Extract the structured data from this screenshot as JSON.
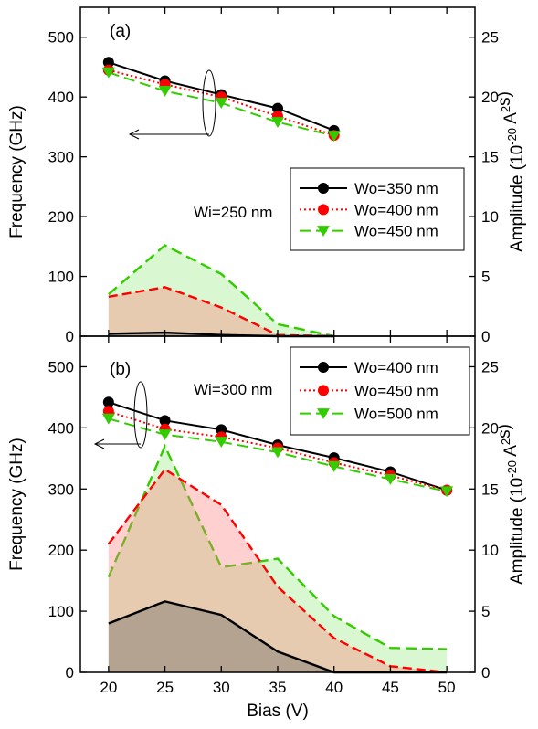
{
  "chart_data": [
    {
      "panel_label": "(a)",
      "type": "line",
      "annotation": "Wi=250 nm",
      "xlabel": "Bias (V)",
      "ylabel_left": "Frequency (GHz)",
      "ylabel_right": {
        "prefix": "Amplitude (10",
        "exp": "-20",
        "mid": " A",
        "exp2": "2",
        "suffix": "s)"
      },
      "xlim": [
        17.5,
        52.5
      ],
      "ylim_left": [
        0,
        550
      ],
      "ylim_right": [
        0,
        27.5
      ],
      "x_ticks": [
        20,
        25,
        30,
        35,
        40,
        45,
        50
      ],
      "y_ticks_left": [
        0,
        100,
        200,
        300,
        400,
        500
      ],
      "y_ticks_right": [
        0,
        5,
        10,
        15,
        20,
        25
      ],
      "legend_position": "center-right",
      "series": [
        {
          "name": "Wo=350 nm",
          "color": "#000000",
          "dash": "solid",
          "marker": "circle",
          "x": [
            20,
            25,
            30,
            35,
            40
          ],
          "frequency": [
            458,
            427,
            404,
            381,
            344
          ],
          "amplitude_x": [
            20,
            25,
            30,
            35,
            40
          ],
          "amplitude": [
            0.2,
            0.3,
            0.1,
            0.0,
            0.0
          ]
        },
        {
          "name": "Wo=400 nm",
          "color": "#ff0000",
          "dash": "dotted",
          "marker": "circle",
          "x": [
            20,
            25,
            30,
            35,
            40
          ],
          "frequency": [
            445,
            421,
            400,
            368,
            336
          ],
          "amplitude_x": [
            20,
            25,
            30,
            35,
            40
          ],
          "amplitude": [
            3.3,
            4.1,
            2.4,
            0.1,
            0.0
          ]
        },
        {
          "name": "Wo=450 nm",
          "color": "#33cc00",
          "dash": "dashed",
          "marker": "triangle-down",
          "x": [
            20,
            25,
            30,
            35,
            40
          ],
          "frequency": [
            441,
            410,
            390,
            358,
            335
          ],
          "amplitude_x": [
            20,
            25,
            30,
            35,
            40
          ],
          "amplitude": [
            3.5,
            7.6,
            5.2,
            1.0,
            0.0
          ]
        }
      ]
    },
    {
      "panel_label": "(b)",
      "type": "line",
      "annotation": "Wi=300 nm",
      "xlabel": "Bias (V)",
      "ylabel_left": "Frequency (GHz)",
      "ylabel_right": {
        "prefix": "Amplitude (10",
        "exp": "-20",
        "mid": " A",
        "exp2": "2",
        "suffix": "s)"
      },
      "xlim": [
        17.5,
        52.5
      ],
      "ylim_left": [
        0,
        550
      ],
      "ylim_right": [
        0,
        27.5
      ],
      "x_ticks": [
        20,
        25,
        30,
        35,
        40,
        45,
        50
      ],
      "x_tick_labels": [
        "20",
        "25",
        "30",
        "35",
        "40",
        "45",
        "50"
      ],
      "y_ticks_left": [
        0,
        100,
        200,
        300,
        400,
        500
      ],
      "y_ticks_right": [
        0,
        5,
        10,
        15,
        20,
        25
      ],
      "legend_position": "top-right",
      "series": [
        {
          "name": "Wo=400 nm",
          "color": "#000000",
          "dash": "solid",
          "marker": "circle",
          "x": [
            20,
            25,
            30,
            35,
            40,
            45,
            50
          ],
          "frequency": [
            442,
            412,
            397,
            372,
            351,
            328,
            298
          ],
          "amplitude_x": [
            20,
            25,
            30,
            35,
            40,
            45,
            50
          ],
          "amplitude": [
            4.0,
            5.8,
            4.7,
            1.7,
            0.0,
            0.0,
            0.0
          ]
        },
        {
          "name": "Wo=450 nm",
          "color": "#ff0000",
          "dash": "dotted",
          "marker": "circle",
          "x": [
            20,
            25,
            30,
            35,
            40,
            45,
            50
          ],
          "frequency": [
            427,
            398,
            385,
            367,
            343,
            322,
            298
          ],
          "amplitude_x": [
            20,
            25,
            30,
            35,
            40,
            45,
            50
          ],
          "amplitude": [
            10.5,
            16.6,
            13.7,
            7.0,
            2.8,
            0.5,
            0.0
          ]
        },
        {
          "name": "Wo=500 nm",
          "color": "#33cc00",
          "dash": "dashed",
          "marker": "triangle-down",
          "x": [
            20,
            25,
            30,
            35,
            40,
            45,
            50
          ],
          "frequency": [
            415,
            389,
            377,
            360,
            337,
            316,
            296
          ],
          "amplitude_x": [
            20,
            25,
            30,
            31.5,
            35,
            40,
            45,
            50
          ],
          "amplitude": [
            7.8,
            18.5,
            8.6,
            8.8,
            9.3,
            4.6,
            2.0,
            1.9
          ]
        }
      ]
    }
  ]
}
